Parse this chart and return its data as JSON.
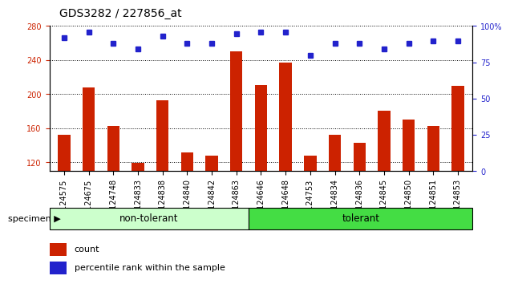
{
  "title": "GDS3282 / 227856_at",
  "categories": [
    "GSM124575",
    "GSM124675",
    "GSM124748",
    "GSM124833",
    "GSM124838",
    "GSM124840",
    "GSM124842",
    "GSM124863",
    "GSM124646",
    "GSM124648",
    "GSM124753",
    "GSM124834",
    "GSM124836",
    "GSM124845",
    "GSM124850",
    "GSM124851",
    "GSM124853"
  ],
  "bar_values": [
    152,
    208,
    163,
    119,
    193,
    132,
    128,
    250,
    211,
    237,
    128,
    152,
    143,
    181,
    170,
    163,
    210
  ],
  "dot_values": [
    92,
    96,
    88,
    84,
    93,
    88,
    88,
    95,
    96,
    96,
    80,
    88,
    88,
    84,
    88,
    90,
    90
  ],
  "non_tolerant_count": 8,
  "tolerant_count": 9,
  "ylim_left": [
    110,
    280
  ],
  "ylim_right": [
    0,
    100
  ],
  "yticks_left": [
    120,
    160,
    200,
    240,
    280
  ],
  "yticks_right": [
    0,
    25,
    50,
    75,
    100
  ],
  "bar_color": "#cc2200",
  "dot_color": "#2222cc",
  "non_tolerant_color_light": "#ccffcc",
  "tolerant_color": "#44dd44",
  "specimen_label": "specimen",
  "non_tolerant_label": "non-tolerant",
  "tolerant_label": "tolerant",
  "legend_count_label": "count",
  "legend_pct_label": "percentile rank within the sample",
  "title_fontsize": 10,
  "tick_fontsize": 7,
  "right_axis_label_color": "#2222cc",
  "left_axis_label_color": "#cc2200"
}
